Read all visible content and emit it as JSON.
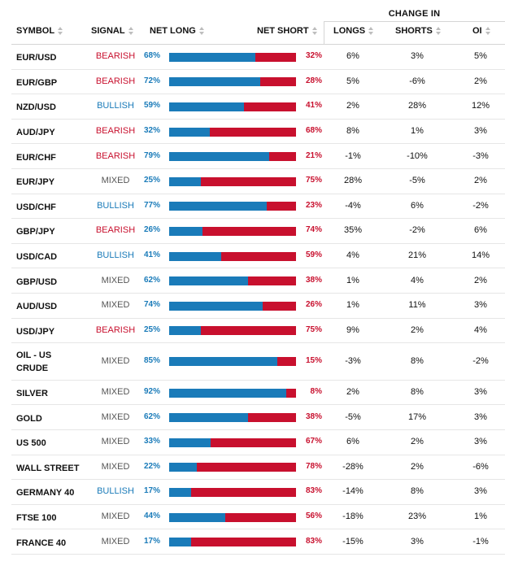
{
  "header": {
    "change_in": "CHANGE IN",
    "symbol": "SYMBOL",
    "signal": "SIGNAL",
    "net_long": "NET LONG",
    "net_short": "NET SHORT",
    "longs": "LONGS",
    "shorts": "SHORTS",
    "oi": "OI"
  },
  "colors": {
    "long": "#1a7bb9",
    "short": "#c8102e",
    "bearish": "#c8102e",
    "bullish": "#1a7bb9",
    "mixed": "#555555"
  },
  "rows": [
    {
      "symbol": "EUR/USD",
      "signal": "BEARISH",
      "net_long": "68%",
      "net_short": "32%",
      "longs": "6%",
      "shorts": "3%",
      "oi": "5%",
      "long_fraction": 0.68
    },
    {
      "symbol": "EUR/GBP",
      "signal": "BEARISH",
      "net_long": "72%",
      "net_short": "28%",
      "longs": "5%",
      "shorts": "-6%",
      "oi": "2%",
      "long_fraction": 0.72
    },
    {
      "symbol": "NZD/USD",
      "signal": "BULLISH",
      "net_long": "59%",
      "net_short": "41%",
      "longs": "2%",
      "shorts": "28%",
      "oi": "12%",
      "long_fraction": 0.59
    },
    {
      "symbol": "AUD/JPY",
      "signal": "BEARISH",
      "net_long": "32%",
      "net_short": "68%",
      "longs": "8%",
      "shorts": "1%",
      "oi": "3%",
      "long_fraction": 0.32
    },
    {
      "symbol": "EUR/CHF",
      "signal": "BEARISH",
      "net_long": "79%",
      "net_short": "21%",
      "longs": "-1%",
      "shorts": "-10%",
      "oi": "-3%",
      "long_fraction": 0.79
    },
    {
      "symbol": "EUR/JPY",
      "signal": "MIXED",
      "net_long": "25%",
      "net_short": "75%",
      "longs": "28%",
      "shorts": "-5%",
      "oi": "2%",
      "long_fraction": 0.25
    },
    {
      "symbol": "USD/CHF",
      "signal": "BULLISH",
      "net_long": "77%",
      "net_short": "23%",
      "longs": "-4%",
      "shorts": "6%",
      "oi": "-2%",
      "long_fraction": 0.77
    },
    {
      "symbol": "GBP/JPY",
      "signal": "BEARISH",
      "net_long": "26%",
      "net_short": "74%",
      "longs": "35%",
      "shorts": "-2%",
      "oi": "6%",
      "long_fraction": 0.26
    },
    {
      "symbol": "USD/CAD",
      "signal": "BULLISH",
      "net_long": "41%",
      "net_short": "59%",
      "longs": "4%",
      "shorts": "21%",
      "oi": "14%",
      "long_fraction": 0.41
    },
    {
      "symbol": "GBP/USD",
      "signal": "MIXED",
      "net_long": "62%",
      "net_short": "38%",
      "longs": "1%",
      "shorts": "4%",
      "oi": "2%",
      "long_fraction": 0.62
    },
    {
      "symbol": "AUD/USD",
      "signal": "MIXED",
      "net_long": "74%",
      "net_short": "26%",
      "longs": "1%",
      "shorts": "11%",
      "oi": "3%",
      "long_fraction": 0.74
    },
    {
      "symbol": "USD/JPY",
      "signal": "BEARISH",
      "net_long": "25%",
      "net_short": "75%",
      "longs": "9%",
      "shorts": "2%",
      "oi": "4%",
      "long_fraction": 0.25
    },
    {
      "symbol": "OIL - US CRUDE",
      "signal": "MIXED",
      "net_long": "85%",
      "net_short": "15%",
      "longs": "-3%",
      "shorts": "8%",
      "oi": "-2%",
      "long_fraction": 0.85
    },
    {
      "symbol": "SILVER",
      "signal": "MIXED",
      "net_long": "92%",
      "net_short": "8%",
      "longs": "2%",
      "shorts": "8%",
      "oi": "3%",
      "long_fraction": 0.92
    },
    {
      "symbol": "GOLD",
      "signal": "MIXED",
      "net_long": "62%",
      "net_short": "38%",
      "longs": "-5%",
      "shorts": "17%",
      "oi": "3%",
      "long_fraction": 0.62
    },
    {
      "symbol": "US 500",
      "signal": "MIXED",
      "net_long": "33%",
      "net_short": "67%",
      "longs": "6%",
      "shorts": "2%",
      "oi": "3%",
      "long_fraction": 0.33
    },
    {
      "symbol": "WALL STREET",
      "signal": "MIXED",
      "net_long": "22%",
      "net_short": "78%",
      "longs": "-28%",
      "shorts": "2%",
      "oi": "-6%",
      "long_fraction": 0.22
    },
    {
      "symbol": "GERMANY 40",
      "signal": "BULLISH",
      "net_long": "17%",
      "net_short": "83%",
      "longs": "-14%",
      "shorts": "8%",
      "oi": "3%",
      "long_fraction": 0.17
    },
    {
      "symbol": "FTSE 100",
      "signal": "MIXED",
      "net_long": "44%",
      "net_short": "56%",
      "longs": "-18%",
      "shorts": "23%",
      "oi": "1%",
      "long_fraction": 0.44
    },
    {
      "symbol": "FRANCE 40",
      "signal": "MIXED",
      "net_long": "17%",
      "net_short": "83%",
      "longs": "-15%",
      "shorts": "3%",
      "oi": "-1%",
      "long_fraction": 0.17
    }
  ]
}
